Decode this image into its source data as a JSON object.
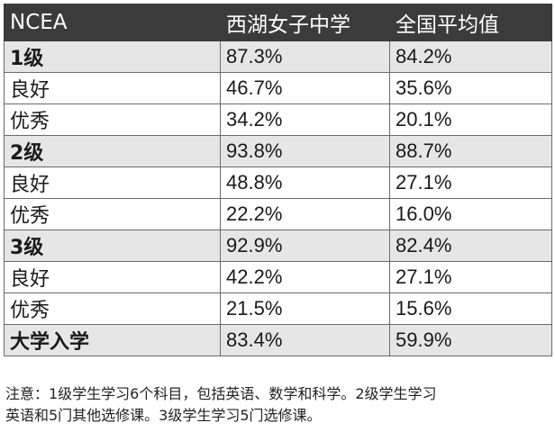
{
  "table": {
    "headers": [
      "NCEA",
      "西湖女子中学",
      "全国平均值"
    ],
    "rows": [
      {
        "label": "1级",
        "school": "87.3%",
        "national": "84.2%",
        "kind": "level"
      },
      {
        "label": "良好",
        "school": "46.7%",
        "national": "35.6%",
        "kind": "sub"
      },
      {
        "label": "优秀",
        "school": "34.2%",
        "national": "20.1%",
        "kind": "sub"
      },
      {
        "label": "2级",
        "school": "93.8%",
        "national": "88.7%",
        "kind": "level"
      },
      {
        "label": "良好",
        "school": "48.8%",
        "national": "27.1%",
        "kind": "sub"
      },
      {
        "label": "优秀",
        "school": "22.2%",
        "national": "16.0%",
        "kind": "sub"
      },
      {
        "label": "3级",
        "school": "92.9%",
        "national": "82.4%",
        "kind": "level"
      },
      {
        "label": "良好",
        "school": "42.2%",
        "national": "27.1%",
        "kind": "sub"
      },
      {
        "label": "优秀",
        "school": "21.5%",
        "national": "15.6%",
        "kind": "sub"
      },
      {
        "label": "大学入学",
        "school": "83.4%",
        "national": "59.9%",
        "kind": "level"
      }
    ]
  },
  "note": {
    "line1": "注意：1级学生学习6个科目，包括英语、数学和科学。2级学生学习",
    "line2": "英语和5门其他选修课。3级学生学习5门选修课。"
  },
  "colors": {
    "header_bg": "#3b3b3b",
    "header_text": "#ffffff",
    "level_row_bg": "#e6e6e6",
    "sub_row_bg": "#ffffff",
    "border": "#6a6a6a"
  }
}
